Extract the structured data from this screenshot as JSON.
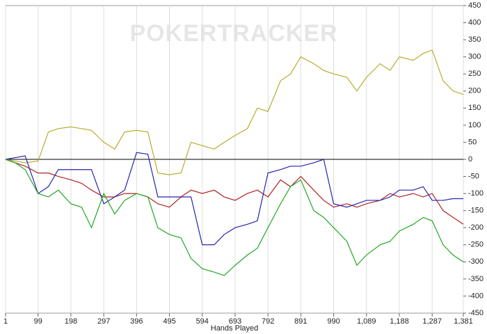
{
  "chart_data": {
    "type": "line",
    "watermark": "POKERTRACKER",
    "x_label": "Hands Played",
    "x": [
      1,
      30,
      60,
      99,
      130,
      160,
      198,
      230,
      260,
      297,
      330,
      360,
      396,
      430,
      460,
      495,
      530,
      560,
      594,
      630,
      660,
      693,
      730,
      760,
      792,
      830,
      860,
      891,
      930,
      960,
      990,
      1030,
      1060,
      1089,
      1130,
      1160,
      1188,
      1230,
      1260,
      1287,
      1320,
      1350,
      1381
    ],
    "series": [
      {
        "color": "#b5ad2a",
        "values": [
          0,
          -5,
          -10,
          -5,
          80,
          90,
          95,
          90,
          85,
          50,
          30,
          80,
          85,
          80,
          -40,
          -45,
          -40,
          50,
          40,
          30,
          50,
          70,
          90,
          150,
          140,
          230,
          250,
          300,
          280,
          260,
          250,
          240,
          200,
          240,
          280,
          260,
          300,
          290,
          310,
          320,
          230,
          200,
          190
        ]
      },
      {
        "color": "#b22222",
        "values": [
          0,
          -10,
          -20,
          -40,
          -40,
          -50,
          -60,
          -70,
          -90,
          -110,
          -110,
          -100,
          -100,
          -110,
          -130,
          -140,
          -110,
          -90,
          -100,
          -90,
          -110,
          -120,
          -100,
          -90,
          -110,
          -60,
          -80,
          -50,
          -90,
          -120,
          -140,
          -130,
          -140,
          -130,
          -120,
          -100,
          -110,
          -100,
          -110,
          -100,
          -150,
          -170,
          -190
        ]
      },
      {
        "color": "#2424b0",
        "values": [
          0,
          5,
          10,
          -100,
          -80,
          -30,
          -30,
          -30,
          -30,
          -130,
          -110,
          -90,
          20,
          15,
          -110,
          -110,
          -110,
          -110,
          -250,
          -250,
          -220,
          -200,
          -190,
          -180,
          -40,
          -30,
          -20,
          -20,
          -10,
          0,
          -130,
          -140,
          -130,
          -120,
          -120,
          -110,
          -90,
          -90,
          -80,
          -120,
          -120,
          -115,
          -115
        ]
      },
      {
        "color": "#22a822",
        "values": [
          0,
          -10,
          -30,
          -100,
          -110,
          -90,
          -130,
          -140,
          -200,
          -100,
          -160,
          -120,
          -100,
          -110,
          -200,
          -220,
          -230,
          -290,
          -320,
          -330,
          -340,
          -310,
          -280,
          -260,
          -200,
          -130,
          -80,
          -60,
          -150,
          -170,
          -200,
          -240,
          -310,
          -280,
          -250,
          -240,
          -210,
          -190,
          -170,
          -180,
          -250,
          -280,
          -300
        ]
      }
    ],
    "xlim": [
      1,
      1381
    ],
    "ylim": [
      -450,
      450
    ],
    "xticks": [
      1,
      99,
      198,
      297,
      396,
      495,
      594,
      693,
      792,
      891,
      990,
      {
        "value": 1089,
        "label": "1,089"
      },
      {
        "value": 1188,
        "label": "1,188"
      },
      {
        "value": 1287,
        "label": "1,287"
      },
      {
        "value": 1381,
        "label": "1,381"
      }
    ],
    "yticks": [
      -450,
      -400,
      -350,
      -300,
      -250,
      -200,
      -150,
      -100,
      -50,
      0,
      50,
      100,
      150,
      200,
      250,
      300,
      350,
      400,
      450
    ],
    "grid": "x",
    "y_axis_side": "right"
  }
}
